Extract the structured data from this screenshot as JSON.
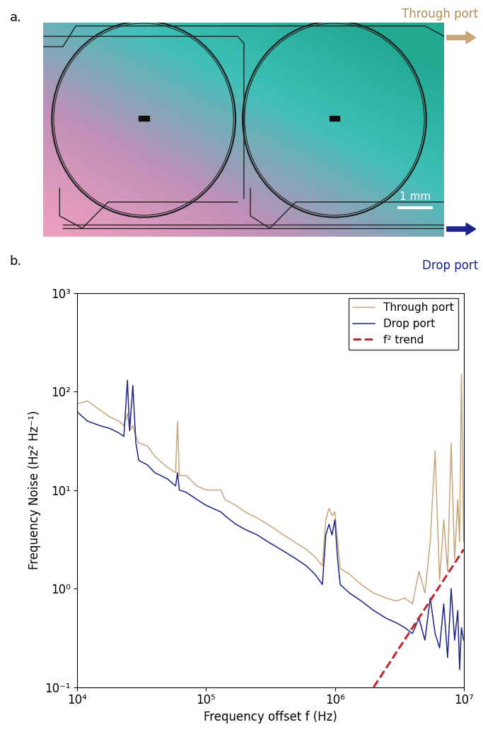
{
  "photo": {
    "panel_label": "a.",
    "through_port": "Through port",
    "drop_port": "Drop port",
    "scale_bar": "1 mm"
  },
  "chart_data": {
    "type": "line",
    "panel_label": "b.",
    "x_label": "Frequency offset f (Hz)",
    "y_label": "Frequency Noise (Hz² Hz⁻¹)",
    "log": true,
    "grid": false,
    "legend": "upper right",
    "xlim": [
      10000,
      10000000
    ],
    "ylim": [
      0.1,
      1000
    ],
    "xticks": [
      {
        "value": 10000,
        "label": "10⁴"
      },
      {
        "value": 100000,
        "label": "10⁵"
      },
      {
        "value": 1000000,
        "label": "10⁶"
      },
      {
        "value": 10000000,
        "label": "10⁷"
      }
    ],
    "yticks": [
      {
        "value": 0.1,
        "label": "10⁻¹"
      },
      {
        "value": 1,
        "label": "10⁰"
      },
      {
        "value": 10,
        "label": "10¹"
      },
      {
        "value": 100,
        "label": "10²"
      },
      {
        "value": 1000,
        "label": "10³"
      }
    ],
    "x": [
      10000,
      12000,
      15000,
      18000,
      21000,
      23000,
      24500,
      25500,
      27000,
      28500,
      30000,
      35000,
      40000,
      50000,
      58000,
      60000,
      62000,
      70000,
      85000,
      100000,
      130000,
      140000,
      170000,
      200000,
      250000,
      300000,
      400000,
      500000,
      600000,
      700000,
      800000,
      850000,
      900000,
      950000,
      1000000,
      1050000,
      1100000,
      1300000,
      1600000,
      2000000,
      2500000,
      3000000,
      3500000,
      4000000,
      4500000,
      5000000,
      5500000,
      6000000,
      6500000,
      7000000,
      7500000,
      8000000,
      8500000,
      9000000,
      9300000,
      9600000,
      10000000
    ],
    "series": [
      {
        "name": "Through port",
        "color": "#c9a57a",
        "line_style": "solid",
        "values": [
          75,
          80,
          65,
          55,
          50,
          45,
          60,
          40,
          45,
          35,
          30,
          28,
          22,
          17,
          15,
          50,
          14,
          14,
          11,
          10,
          10,
          8,
          7,
          6,
          5.2,
          4.5,
          3.5,
          2.9,
          2.5,
          2.1,
          1.7,
          5,
          6.5,
          5.5,
          6,
          3,
          1.6,
          1.4,
          1.1,
          0.9,
          0.8,
          0.75,
          0.8,
          0.7,
          1.5,
          0.9,
          3,
          25,
          1.2,
          5,
          1.5,
          30,
          2,
          8,
          3,
          150,
          3
        ]
      },
      {
        "name": "Drop port",
        "color": "#1c2587",
        "line_style": "solid",
        "values": [
          62,
          50,
          45,
          42,
          38,
          35,
          130,
          40,
          115,
          30,
          20,
          18,
          15,
          13,
          11,
          15,
          10,
          9.5,
          8,
          7,
          6,
          5.5,
          4.5,
          4,
          3.5,
          3,
          2.4,
          2,
          1.7,
          1.4,
          1.1,
          3.5,
          4.5,
          3.5,
          5,
          2,
          1.1,
          0.9,
          0.75,
          0.6,
          0.5,
          0.45,
          0.4,
          0.35,
          0.5,
          0.3,
          0.8,
          0.35,
          0.25,
          0.7,
          0.2,
          1.0,
          0.3,
          0.6,
          0.15,
          0.4,
          0.3
        ]
      },
      {
        "name": "f² trend",
        "color": "#c0272d",
        "line_style": "dashed",
        "x": [
          2000000,
          10000000
        ],
        "values": [
          0.1,
          2.5
        ]
      }
    ]
  }
}
